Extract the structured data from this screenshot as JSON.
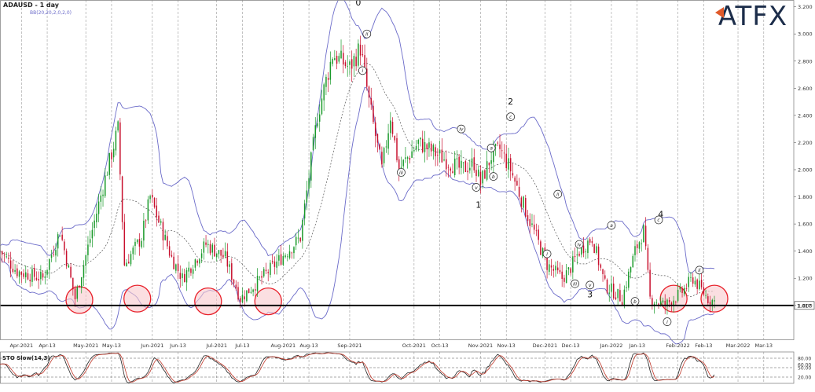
{
  "header": {
    "symbol_title": "ADAUSD - 1 day",
    "indicator_label": "BB(20,20,2,0,2,0)",
    "brand": "ATFX"
  },
  "oscillator": {
    "title": "STO Slow(14,3)",
    "ticks": [
      "80.00",
      "60.00",
      "50.00",
      "20.00"
    ],
    "levels": [
      80,
      50,
      20
    ]
  },
  "colors": {
    "bull": "#1a9a2a",
    "bear": "#c8102e",
    "band": "#6b6bc9",
    "mid": "#555555",
    "circle_stroke": "#e8202a",
    "circle_fill": "#f9c9cd",
    "brand": "#1c2d4a",
    "brand_accent": "#e05a2a",
    "osc_k": "#222222",
    "osc_d": "#c0392b"
  },
  "chart_data": {
    "type": "candlestick",
    "xlabel": "",
    "ylabel": "",
    "ylim": [
      0.75,
      3.25
    ],
    "grid": "vertical dashed",
    "y_ticks": [
      "3.200",
      "3.000",
      "2.800",
      "2.600",
      "2.400",
      "2.200",
      "2.000",
      "1.800",
      "1.600",
      "1.400",
      "1.200",
      "1.000"
    ],
    "x_ticks": [
      "Apr-2021",
      "Apr-13",
      "May-2021",
      "May-13",
      "Jun-2021",
      "Jun-13",
      "Jul-2021",
      "Jul-13",
      "Aug-2021",
      "Aug-13",
      "Sep-2021",
      "Oct-2021",
      "Oct-13",
      "Nov-2021",
      "Nov-13",
      "Dec-2021",
      "Dec-13",
      "Jan-2022",
      "Jan-13",
      "Feb-2022",
      "Feb-13",
      "Mar-2022",
      "Mar-13"
    ],
    "x_tick_days": [
      10,
      22,
      40,
      52,
      71,
      83,
      101,
      113,
      132,
      144,
      163,
      193,
      205,
      224,
      236,
      254,
      266,
      285,
      297,
      316,
      328,
      344,
      356
    ],
    "current_price": "1.017",
    "support_level": 1.0,
    "price_path": [
      [
        0,
        1.4
      ],
      [
        8,
        1.25
      ],
      [
        20,
        1.2
      ],
      [
        28,
        1.55
      ],
      [
        35,
        1.05
      ],
      [
        50,
        2.0
      ],
      [
        55,
        2.3
      ],
      [
        58,
        1.3
      ],
      [
        66,
        1.5
      ],
      [
        70,
        1.8
      ],
      [
        80,
        1.35
      ],
      [
        85,
        1.2
      ],
      [
        96,
        1.45
      ],
      [
        105,
        1.35
      ],
      [
        112,
        1.05
      ],
      [
        125,
        1.25
      ],
      [
        140,
        1.5
      ],
      [
        148,
        2.4
      ],
      [
        155,
        2.85
      ],
      [
        163,
        2.75
      ],
      [
        168,
        2.9
      ],
      [
        172,
        2.5
      ],
      [
        178,
        2.0
      ],
      [
        182,
        2.4
      ],
      [
        186,
        2.0
      ],
      [
        195,
        2.2
      ],
      [
        205,
        2.1
      ],
      [
        215,
        2.0
      ],
      [
        221,
        2.05
      ],
      [
        224,
        1.9
      ],
      [
        229,
        2.1
      ],
      [
        233,
        2.15
      ],
      [
        238,
        2.0
      ],
      [
        245,
        1.7
      ],
      [
        255,
        1.3
      ],
      [
        262,
        1.2
      ],
      [
        265,
        1.25
      ],
      [
        270,
        1.4
      ],
      [
        276,
        1.5
      ],
      [
        282,
        1.15
      ],
      [
        290,
        1.05
      ],
      [
        296,
        1.4
      ],
      [
        300,
        1.55
      ],
      [
        303,
        1.05
      ],
      [
        310,
        1.0
      ],
      [
        318,
        1.1
      ],
      [
        323,
        1.2
      ],
      [
        330,
        1.05
      ],
      [
        333,
        1.03
      ]
    ],
    "wave_labels_major": [
      {
        "text": "0",
        "x": 167,
        "y": 3.21
      },
      {
        "text": "1",
        "x": 223,
        "y": 1.72
      },
      {
        "text": "2",
        "x": 238,
        "y": 2.48
      },
      {
        "text": "3",
        "x": 275,
        "y": 1.06
      },
      {
        "text": "4",
        "x": 308,
        "y": 1.65
      }
    ],
    "wave_labels_minor": [
      {
        "text": "ii",
        "x": 171,
        "y": 3.0
      },
      {
        "text": "i",
        "x": 169,
        "y": 2.73
      },
      {
        "text": "iii",
        "x": 187,
        "y": 1.98
      },
      {
        "text": "iv",
        "x": 215,
        "y": 2.3
      },
      {
        "text": "v",
        "x": 222,
        "y": 1.87
      },
      {
        "text": "a",
        "x": 229,
        "y": 2.16
      },
      {
        "text": "b",
        "x": 230,
        "y": 1.95
      },
      {
        "text": "c",
        "x": 238,
        "y": 2.39
      },
      {
        "text": "ii",
        "x": 260,
        "y": 1.82
      },
      {
        "text": "i",
        "x": 255,
        "y": 1.38
      },
      {
        "text": "iv",
        "x": 270,
        "y": 1.45
      },
      {
        "text": "iii",
        "x": 268,
        "y": 1.16
      },
      {
        "text": "v",
        "x": 275,
        "y": 1.15
      },
      {
        "text": "a",
        "x": 285,
        "y": 1.59
      },
      {
        "text": "b",
        "x": 296,
        "y": 1.03
      },
      {
        "text": "c",
        "x": 307,
        "y": 1.63
      },
      {
        "text": "i",
        "x": 311,
        "y": 0.88
      },
      {
        "text": "ii",
        "x": 326,
        "y": 1.26
      }
    ],
    "highlight_circles": [
      {
        "x": 37,
        "y": 1.04
      },
      {
        "x": 64,
        "y": 1.05
      },
      {
        "x": 97,
        "y": 1.03
      },
      {
        "x": 125,
        "y": 1.03
      },
      {
        "x": 314,
        "y": 1.05
      },
      {
        "x": 333,
        "y": 1.05
      }
    ]
  }
}
